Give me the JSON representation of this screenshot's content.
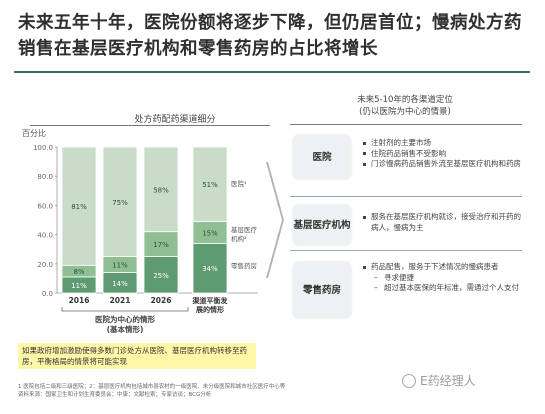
{
  "title": "未来五年十年，医院份额将逐步下降，但仍居首位；慢病处方药销售在基层医疗机构和零售药房的占比将增长",
  "left_heading": "处方药配药渠道细分",
  "right_heading_line1": "未来5-10年的各渠道定位",
  "right_heading_line2": "(仍以医院为中心的情景)",
  "colors": {
    "hospital": "#c8dcc8",
    "primary": "#8fbf93",
    "retail": "#5e9a72",
    "accent_rule": "#3d6b5e",
    "note_bg": "#fff6a8"
  },
  "chart_data": {
    "type": "bar",
    "stacked": true,
    "ylabel": "百分比",
    "ylim": [
      0,
      100
    ],
    "yticks": [
      "0.0",
      "20.0",
      "40.0",
      "60.0",
      "80.0",
      "100.0"
    ],
    "categories": [
      "2016",
      "2021",
      "2026",
      "渠道平衡发展的情形"
    ],
    "series": [
      {
        "name": "零售药房",
        "values": [
          11,
          14,
          25,
          34
        ],
        "labels": [
          "11%",
          "14%",
          "25%",
          "34%"
        ]
      },
      {
        "name": "基层医疗机构",
        "values": [
          8,
          11,
          17,
          15
        ],
        "labels": [
          "8%",
          "11%",
          "17%",
          "15%"
        ]
      },
      {
        "name": "医院",
        "values": [
          81,
          75,
          58,
          51
        ],
        "labels": [
          "81%",
          "75%",
          "58%",
          "51%"
        ]
      }
    ],
    "legend": [
      "医院¹",
      "基层医疗机构²",
      "零售药房"
    ],
    "group_label_line1": "医院为中心的情形",
    "group_label_line2": "(基本情形)"
  },
  "channels": [
    {
      "name": "医院",
      "bullets": [
        "注射剂的主要市场",
        "住院药品销售不受影响",
        "门诊慢病药品销售外流至基层医疗机构和药房"
      ]
    },
    {
      "name": "基层医疗机构",
      "bullets": [
        "服务在基层医疗机构就诊，接受治疗和开药的病人，慢病为主"
      ]
    },
    {
      "name": "零售药房",
      "bullets": [
        "药品配售，服务于下述情况的慢病患者"
      ],
      "sub_bullets": [
        "寻求便捷",
        "超过基本医保的年标准，需通过个人支付"
      ]
    }
  ],
  "note": "如果政府增加激励使得多数门诊处方从医院、基层医疗机构转移至药房，平衡格局的情景将可能实现",
  "footnote_line1": "1 医院包括二级和三级医院；2：基层医疗机构包括城市县农村的一级医院、未分级医院和城市社区医疗中心等",
  "footnote_line2": "资料来源：国家卫生和计划生育委员会；中康；文献检索；专家访谈；BCG分析",
  "watermark": "E药经理人"
}
